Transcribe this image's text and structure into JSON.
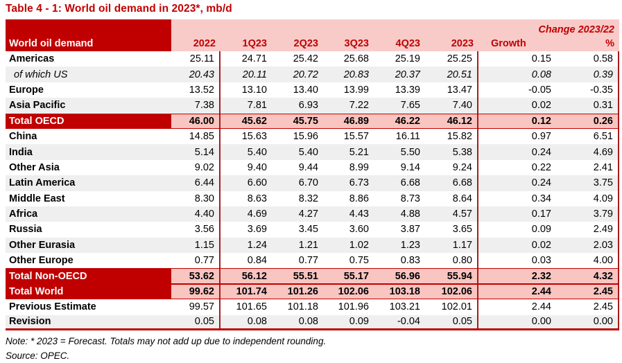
{
  "title": "Table 4 - 1: World oil demand in 2023*, mb/d",
  "chart_data": {
    "type": "table",
    "title": "Table 4 - 1: World oil demand in 2023*, mb/d",
    "unit": "mb/d",
    "corner_label": "World oil demand",
    "group_header": "Change 2023/22",
    "columns": [
      "2022",
      "1Q23",
      "2Q23",
      "3Q23",
      "4Q23",
      "2023",
      "Growth",
      "%"
    ],
    "rows": [
      {
        "label": "Americas",
        "emphasis": "normal",
        "shade": "white",
        "values": [
          "25.11",
          "24.71",
          "25.42",
          "25.68",
          "25.19",
          "25.25",
          "0.15",
          "0.58"
        ]
      },
      {
        "label": "of which US",
        "emphasis": "italic",
        "shade": "gray",
        "values": [
          "20.43",
          "20.11",
          "20.72",
          "20.83",
          "20.37",
          "20.51",
          "0.08",
          "0.39"
        ]
      },
      {
        "label": "Europe",
        "emphasis": "normal",
        "shade": "white",
        "values": [
          "13.52",
          "13.10",
          "13.40",
          "13.99",
          "13.39",
          "13.47",
          "-0.05",
          "-0.35"
        ]
      },
      {
        "label": "Asia Pacific",
        "emphasis": "normal",
        "shade": "gray",
        "values": [
          "7.38",
          "7.81",
          "6.93",
          "7.22",
          "7.65",
          "7.40",
          "0.02",
          "0.31"
        ]
      },
      {
        "label": "Total OECD",
        "emphasis": "total",
        "shade": "pink",
        "values": [
          "46.00",
          "45.62",
          "45.75",
          "46.89",
          "46.22",
          "46.12",
          "0.12",
          "0.26"
        ]
      },
      {
        "label": "China",
        "emphasis": "normal",
        "shade": "white",
        "values": [
          "14.85",
          "15.63",
          "15.96",
          "15.57",
          "16.11",
          "15.82",
          "0.97",
          "6.51"
        ]
      },
      {
        "label": "India",
        "emphasis": "normal",
        "shade": "gray",
        "values": [
          "5.14",
          "5.40",
          "5.40",
          "5.21",
          "5.50",
          "5.38",
          "0.24",
          "4.69"
        ]
      },
      {
        "label": "Other Asia",
        "emphasis": "normal",
        "shade": "white",
        "values": [
          "9.02",
          "9.40",
          "9.44",
          "8.99",
          "9.14",
          "9.24",
          "0.22",
          "2.41"
        ]
      },
      {
        "label": "Latin America",
        "emphasis": "normal",
        "shade": "gray",
        "values": [
          "6.44",
          "6.60",
          "6.70",
          "6.73",
          "6.68",
          "6.68",
          "0.24",
          "3.75"
        ]
      },
      {
        "label": "Middle East",
        "emphasis": "normal",
        "shade": "white",
        "values": [
          "8.30",
          "8.63",
          "8.32",
          "8.86",
          "8.73",
          "8.64",
          "0.34",
          "4.09"
        ]
      },
      {
        "label": "Africa",
        "emphasis": "normal",
        "shade": "gray",
        "values": [
          "4.40",
          "4.69",
          "4.27",
          "4.43",
          "4.88",
          "4.57",
          "0.17",
          "3.79"
        ]
      },
      {
        "label": "Russia",
        "emphasis": "normal",
        "shade": "white",
        "values": [
          "3.56",
          "3.69",
          "3.45",
          "3.60",
          "3.87",
          "3.65",
          "0.09",
          "2.49"
        ]
      },
      {
        "label": "Other Eurasia",
        "emphasis": "normal",
        "shade": "gray",
        "values": [
          "1.15",
          "1.24",
          "1.21",
          "1.02",
          "1.23",
          "1.17",
          "0.02",
          "2.03"
        ]
      },
      {
        "label": "Other Europe",
        "emphasis": "normal",
        "shade": "white",
        "values": [
          "0.77",
          "0.84",
          "0.77",
          "0.75",
          "0.83",
          "0.80",
          "0.03",
          "4.00"
        ]
      },
      {
        "label": "Total Non-OECD",
        "emphasis": "total",
        "shade": "pink",
        "values": [
          "53.62",
          "56.12",
          "55.51",
          "55.17",
          "56.96",
          "55.94",
          "2.32",
          "4.32"
        ]
      },
      {
        "label": "Total World",
        "emphasis": "total",
        "shade": "pink",
        "values": [
          "99.62",
          "101.74",
          "101.26",
          "102.06",
          "103.18",
          "102.06",
          "2.44",
          "2.45"
        ]
      },
      {
        "label": "Previous Estimate",
        "emphasis": "normal",
        "shade": "white",
        "values": [
          "99.57",
          "101.65",
          "101.18",
          "101.96",
          "103.21",
          "102.01",
          "2.44",
          "2.45"
        ]
      },
      {
        "label": "Revision",
        "emphasis": "normal",
        "shade": "gray",
        "values": [
          "0.05",
          "0.08",
          "0.08",
          "0.09",
          "-0.04",
          "0.05",
          "0.00",
          "0.00"
        ]
      }
    ]
  },
  "notes": {
    "note": "Note: * 2023 = Forecast. Totals may not add up due to independent rounding.",
    "source": "Source: OPEC."
  },
  "colors": {
    "dark_red": "#c00000",
    "separator_red": "#a51d1d",
    "header_pink": "#f8cbc9",
    "total_pink": "#f9c5c1",
    "stripe_gray": "#efefef",
    "text_black": "#000000",
    "header_text_white": "#ffffff"
  }
}
